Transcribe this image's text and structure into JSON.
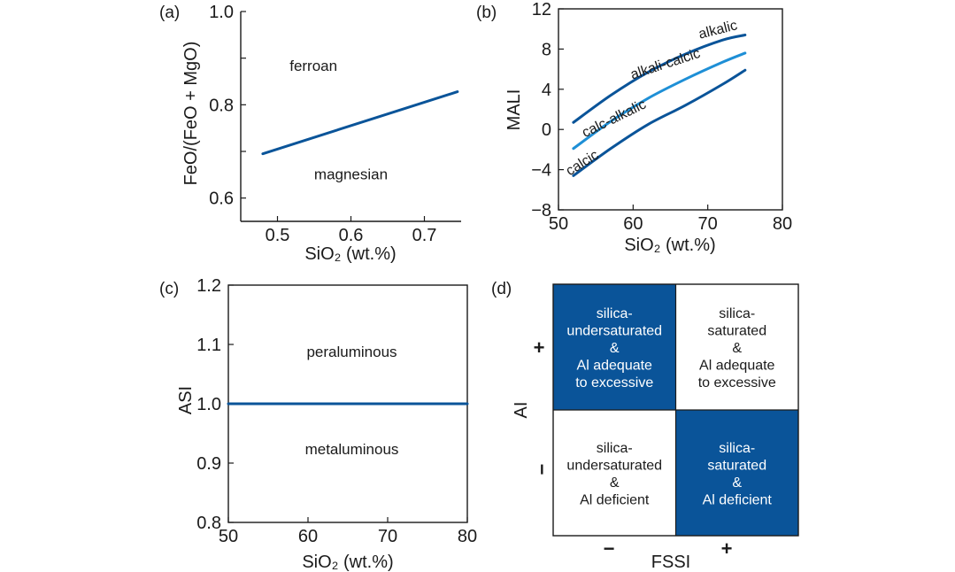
{
  "colors": {
    "dark_blue": "#0a5499",
    "light_blue": "#1e8fd6",
    "axis": "#1a1a1a"
  },
  "chart_data": [
    {
      "id": "a",
      "type": "line",
      "panel_label": "(a)",
      "xlabel": "SiO₂ (wt.%)",
      "ylabel": "FeO/(FeO + MgO)",
      "xlim": [
        0.45,
        0.75
      ],
      "ylim": [
        0.55,
        1.0
      ],
      "xticks": [
        0.5,
        0.6,
        0.7
      ],
      "xtick_labels": [
        "0.5",
        "0.6",
        "0.7"
      ],
      "yticks": [
        0.6,
        0.7,
        0.8,
        0.9,
        1.0
      ],
      "ytick_labels": [
        "0.6",
        "",
        "0.8",
        "",
        "1.0"
      ],
      "series": [
        {
          "x": [
            0.48,
            0.745
          ],
          "y": [
            0.695,
            0.828
          ],
          "color": "#0a5499"
        }
      ],
      "annotations": [
        {
          "text": "ferroan",
          "x": 0.549,
          "y": 0.873
        },
        {
          "text": "magnesian",
          "x": 0.6,
          "y": 0.64
        }
      ]
    },
    {
      "id": "b",
      "type": "line",
      "panel_label": "(b)",
      "xlabel": "SiO₂ (wt.%)",
      "ylabel": "MALI",
      "xlim": [
        50,
        80
      ],
      "ylim": [
        -8,
        12
      ],
      "xticks": [
        50,
        60,
        70,
        80
      ],
      "xtick_labels": [
        "50",
        "60",
        "70",
        "80"
      ],
      "yticks": [
        -8,
        -4,
        0,
        4,
        8,
        12
      ],
      "ytick_labels": [
        "−8",
        "−4",
        "0",
        "4",
        "8",
        "12"
      ],
      "series": [
        {
          "x": [
            52,
            57,
            62,
            67,
            72,
            75
          ],
          "y": [
            0.7,
            3.4,
            5.7,
            7.5,
            8.9,
            9.4
          ],
          "color": "#0a5499"
        },
        {
          "x": [
            52,
            57,
            62,
            67,
            72,
            75
          ],
          "y": [
            -1.9,
            0.8,
            3.1,
            5.0,
            6.7,
            7.6
          ],
          "color": "#1e8fd6"
        },
        {
          "x": [
            52,
            57,
            62,
            67,
            72,
            75
          ],
          "y": [
            -4.6,
            -1.9,
            0.5,
            2.4,
            4.5,
            5.9
          ],
          "color": "#0a5499"
        }
      ],
      "annotations": [
        {
          "text": "alkalic",
          "x": 71.5,
          "y": 9.5,
          "rotate": -14
        },
        {
          "text": "alkali-calcic",
          "x": 64.5,
          "y": 6.1,
          "rotate": -18
        },
        {
          "text": "calc-alkalic",
          "x": 57.7,
          "y": 0.7,
          "rotate": -26
        },
        {
          "text": "calcic",
          "x": 53.5,
          "y": -3.7,
          "rotate": -32
        }
      ]
    },
    {
      "id": "c",
      "type": "line",
      "panel_label": "(c)",
      "xlabel": "SiO₂ (wt.%)",
      "ylabel": "ASI",
      "xlim": [
        50,
        80
      ],
      "ylim": [
        0.8,
        1.2
      ],
      "xticks": [
        50,
        60,
        70,
        80
      ],
      "xtick_labels": [
        "50",
        "60",
        "70",
        "80"
      ],
      "yticks": [
        0.8,
        0.9,
        1.0,
        1.1,
        1.2
      ],
      "ytick_labels": [
        "0.8",
        "0.9",
        "1.0",
        "1.1",
        "1.2"
      ],
      "series": [
        {
          "x": [
            50,
            80
          ],
          "y": [
            1.0,
            1.0
          ],
          "color": "#0a5499"
        }
      ],
      "annotations": [
        {
          "text": "peraluminous",
          "x": 65.5,
          "y": 1.079
        },
        {
          "text": "metaluminous",
          "x": 65.5,
          "y": 0.915
        }
      ]
    }
  ],
  "panel_d": {
    "panel_label": "(d)",
    "xlabel": "FSSI",
    "ylabel": "AI",
    "x_minus": "−",
    "x_plus": "+",
    "y_plus": "+",
    "y_minus": "−",
    "cells": [
      {
        "lines": [
          "silica-",
          "undersaturated",
          "&",
          "Al adequate",
          "to excessive"
        ],
        "filled": true
      },
      {
        "lines": [
          "silica-",
          "saturated",
          "&",
          "Al adequate",
          "to excessive"
        ],
        "filled": false
      },
      {
        "lines": [
          "silica-",
          "undersaturated",
          "&",
          "Al deficient"
        ],
        "filled": false
      },
      {
        "lines": [
          "silica-",
          "saturated",
          "&",
          "Al deficient"
        ],
        "filled": true
      }
    ]
  }
}
